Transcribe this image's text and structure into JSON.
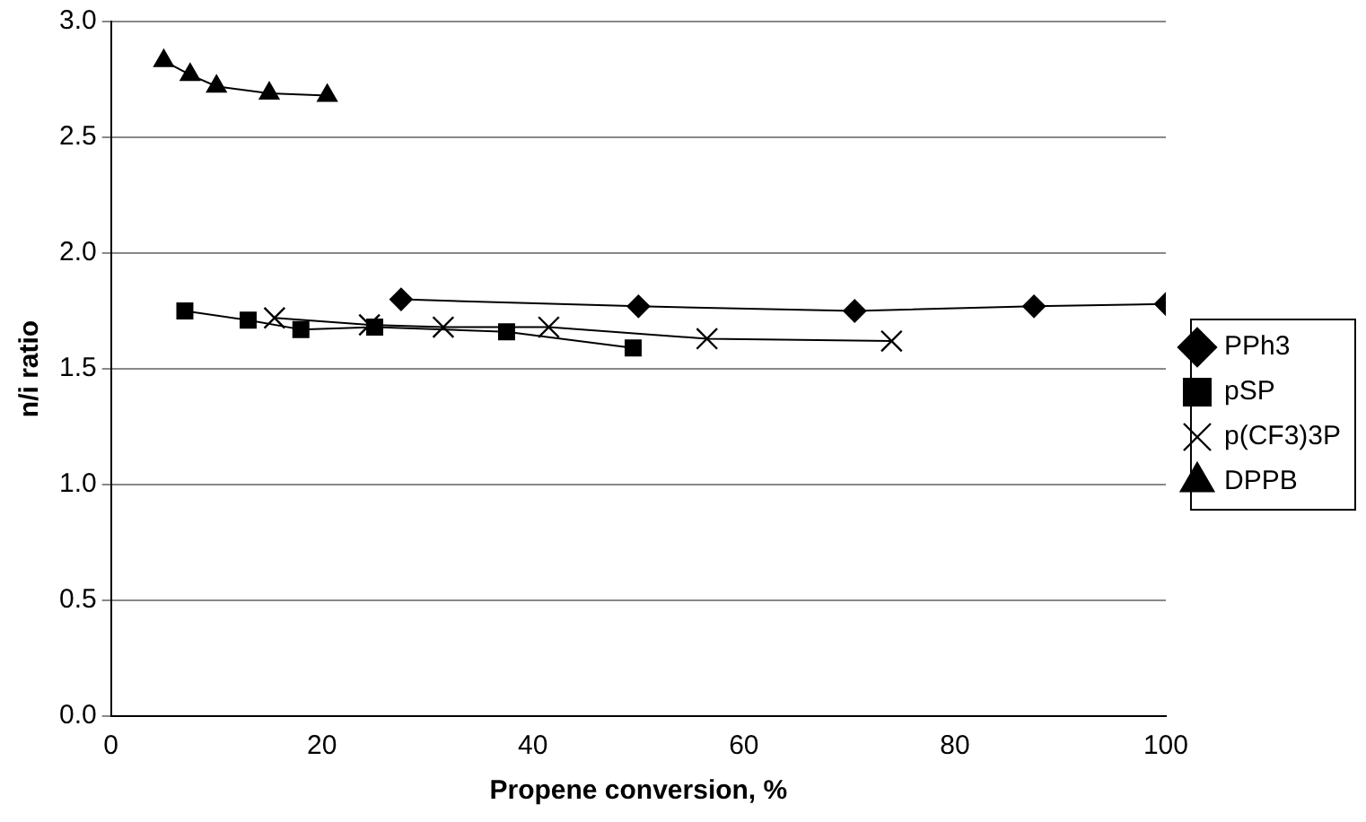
{
  "chart_data": {
    "type": "line",
    "xlabel": "Propene conversion, %",
    "ylabel": "n/i ratio",
    "xlim": [
      0,
      100
    ],
    "xticks": [
      0,
      20,
      40,
      60,
      80,
      100
    ],
    "ylim": [
      0,
      3
    ],
    "yticks": [
      {
        "value": 0,
        "label": "0.0"
      },
      {
        "value": 0.5,
        "label": "0.5"
      },
      {
        "value": 1,
        "label": "1.0"
      },
      {
        "value": 1.5,
        "label": "1.5"
      },
      {
        "value": 2,
        "label": "2.0"
      },
      {
        "value": 2.5,
        "label": "2.5"
      },
      {
        "value": 3,
        "label": "3.0"
      }
    ],
    "grid": "y",
    "legend": "right",
    "line_style": "solid",
    "series": [
      {
        "name": "PPh3",
        "color": "#000000",
        "marker": "diamond",
        "x": [
          27.5,
          50,
          70.5,
          87.5,
          100
        ],
        "values": [
          1.8,
          1.77,
          1.75,
          1.77,
          1.78
        ]
      },
      {
        "name": "pSP",
        "color": "#000000",
        "marker": "square",
        "x": [
          7,
          13,
          18,
          25,
          37.5,
          49.5
        ],
        "values": [
          1.75,
          1.71,
          1.67,
          1.68,
          1.66,
          1.59
        ]
      },
      {
        "name": "p(CF3)3P",
        "color": "#000000",
        "marker": "cross",
        "x": [
          15.5,
          24.5,
          31.5,
          41.5,
          56.5,
          74
        ],
        "values": [
          1.72,
          1.69,
          1.68,
          1.68,
          1.63,
          1.62
        ]
      },
      {
        "name": "DPPB",
        "color": "#000000",
        "marker": "triangle",
        "x": [
          5,
          7.5,
          10,
          15,
          20.5
        ],
        "values": [
          2.83,
          2.77,
          2.72,
          2.69,
          2.68
        ]
      }
    ]
  }
}
